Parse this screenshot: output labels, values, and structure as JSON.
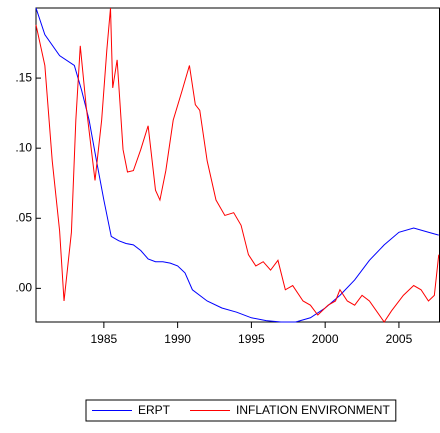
{
  "chart_data": {
    "type": "line",
    "xlim": [
      1980.4,
      2007.75
    ],
    "xticks": [
      1985,
      1990,
      1995,
      2000,
      2005
    ],
    "ylim": [
      -0.024,
      0.2
    ],
    "yticks": [
      {
        "value": 0,
        "label": ".00"
      },
      {
        "value": 0.05,
        "label": ".05"
      },
      {
        "value": 0.1,
        "label": ".10"
      },
      {
        "value": 0.15,
        "label": ".15"
      }
    ],
    "legend": "bottom",
    "series": [
      {
        "name": "ERPT",
        "color": "#0000ff",
        "x": [
          1980.4,
          1981,
          1982,
          1983,
          1983.5,
          1984,
          1984.5,
          1985,
          1985.5,
          1986,
          1986.5,
          1987,
          1987.5,
          1988,
          1988.5,
          1989,
          1989.5,
          1990,
          1990.5,
          1991,
          1992,
          1993,
          1994,
          1995,
          1996,
          1997,
          1998,
          1999,
          2000,
          2001,
          2002,
          2003,
          2004,
          2005,
          2006,
          2007,
          2007.7
        ],
        "values": [
          0.2,
          0.181,
          0.166,
          0.159,
          0.141,
          0.12,
          0.091,
          0.063,
          0.037,
          0.034,
          0.032,
          0.031,
          0.027,
          0.021,
          0.019,
          0.019,
          0.018,
          0.016,
          0.011,
          -0.001,
          -0.009,
          -0.014,
          -0.017,
          -0.021,
          -0.023,
          -0.024,
          -0.024,
          -0.021,
          -0.014,
          -0.005,
          0.006,
          0.02,
          0.031,
          0.04,
          0.043,
          0.04,
          0.038
        ]
      },
      {
        "name": "INFLATION ENVIRONMENT",
        "color": "#ff0000",
        "x": [
          1980.4,
          1981,
          1981.5,
          1982,
          1982.3,
          1982.8,
          1983.1,
          1983.4,
          1983.8,
          1984.4,
          1984.85,
          1985.2,
          1985.45,
          1985.6,
          1985.9,
          1986.3,
          1986.6,
          1987,
          1987.5,
          1988,
          1988.5,
          1988.8,
          1989.2,
          1989.7,
          1990.3,
          1990.8,
          1991.2,
          1991.5,
          1992,
          1992.6,
          1993.2,
          1993.8,
          1994.3,
          1994.8,
          1995.3,
          1995.8,
          1996.3,
          1996.8,
          1997.3,
          1997.8,
          1998.5,
          1999,
          1999.5,
          2000.2,
          2000.7,
          2001,
          2001.5,
          2002,
          2002.5,
          2003,
          2004,
          2004.5,
          2005.3,
          2006,
          2006.5,
          2007,
          2007.4,
          2007.7
        ],
        "values": [
          0.188,
          0.159,
          0.091,
          0.041,
          -0.009,
          0.04,
          0.12,
          0.173,
          0.13,
          0.077,
          0.12,
          0.17,
          0.2,
          0.143,
          0.163,
          0.099,
          0.083,
          0.084,
          0.099,
          0.116,
          0.07,
          0.063,
          0.084,
          0.12,
          0.141,
          0.159,
          0.131,
          0.127,
          0.091,
          0.063,
          0.052,
          0.054,
          0.045,
          0.024,
          0.016,
          0.019,
          0.013,
          0.02,
          -0.001,
          0.002,
          -0.009,
          -0.012,
          -0.019,
          -0.012,
          -0.009,
          -0.001,
          -0.009,
          -0.012,
          -0.005,
          -0.009,
          -0.024,
          -0.016,
          -0.005,
          0.002,
          -0.001,
          -0.009,
          -0.005,
          0.024
        ]
      }
    ]
  }
}
